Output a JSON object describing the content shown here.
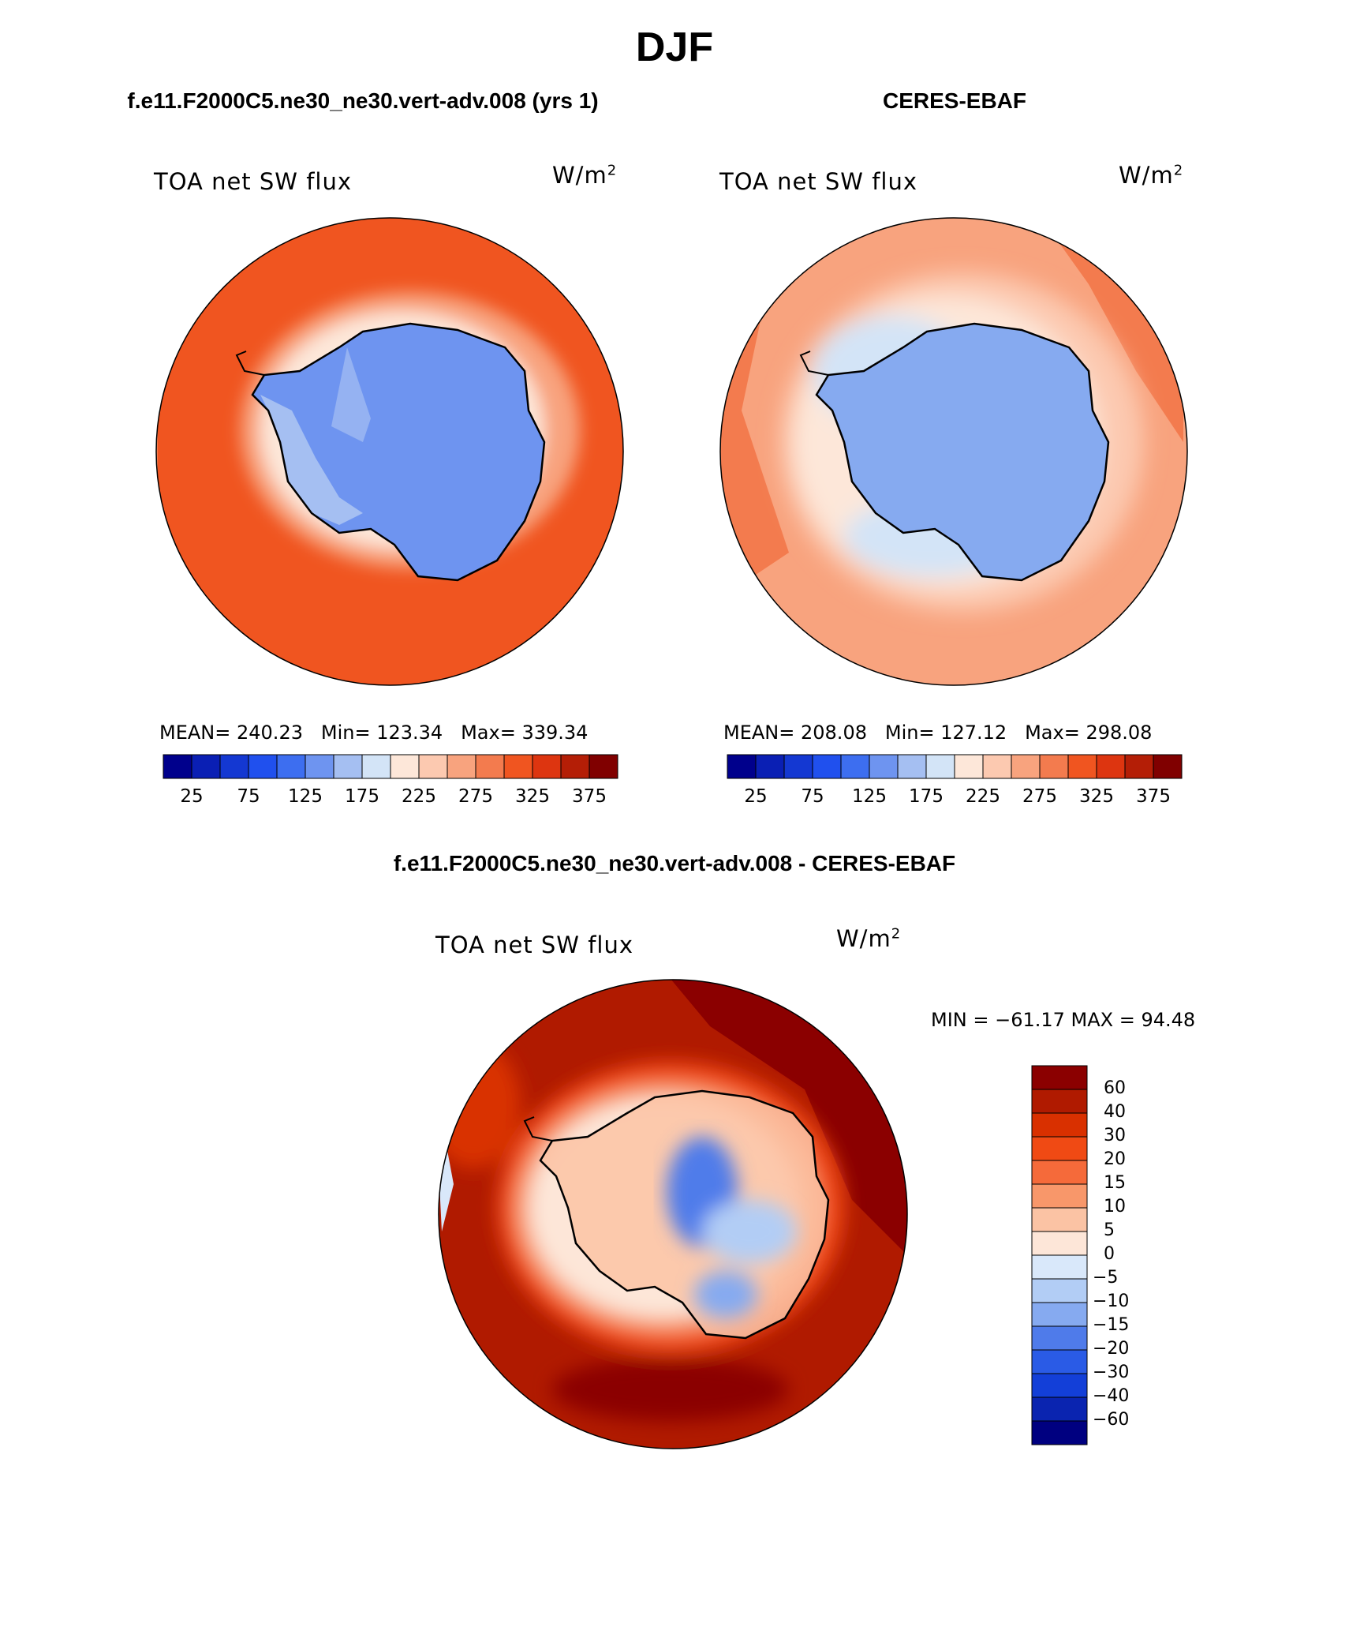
{
  "figure": {
    "title": "DJF"
  },
  "panels": [
    {
      "id": "model",
      "header": "f.e11.F2000C5.ne30_ne30.vert-adv.008 (yrs 1)",
      "variable": "TOA net SW flux",
      "units_base": "W/m",
      "units_exp": "2",
      "stats": {
        "mean_label": "MEAN=",
        "mean": "240.23",
        "min_label": "Min=",
        "min": "123.34",
        "max_label": "Max=",
        "max": "339.34"
      }
    },
    {
      "id": "obs",
      "header": "CERES-EBAF",
      "variable": "TOA net SW flux",
      "units_base": "W/m",
      "units_exp": "2",
      "stats": {
        "mean_label": "MEAN=",
        "mean": "208.08",
        "min_label": "Min=",
        "min": "127.12",
        "max_label": "Max=",
        "max": "298.08"
      }
    }
  ],
  "abs_colorbar": {
    "colors": [
      "#00008c",
      "#0a1fb4",
      "#1438d2",
      "#2050ee",
      "#3d6ef0",
      "#6e94f0",
      "#a5bff2",
      "#d3e4f7",
      "#fde7d9",
      "#fcc9b0",
      "#f8a37e",
      "#f37b4e",
      "#f05520",
      "#dd3510",
      "#b41e06",
      "#800000"
    ],
    "tick_labels": [
      "25",
      "75",
      "125",
      "175",
      "225",
      "275",
      "325",
      "375"
    ]
  },
  "diff_panel": {
    "header": "f.e11.F2000C5.ne30_ne30.vert-adv.008 - CERES-EBAF",
    "variable": "TOA net SW flux",
    "units_base": "W/m",
    "units_exp": "2",
    "minmax": "MIN = −61.17 MAX =  94.48",
    "colorbar": {
      "colors_top_to_bottom": [
        "#8b0000",
        "#b01a00",
        "#d93000",
        "#f04a14",
        "#f56a3a",
        "#f8976a",
        "#fbc3a4",
        "#fde6d8",
        "#d9e8fa",
        "#b2cdf5",
        "#86aaf0",
        "#4f7bea",
        "#2a5be6",
        "#133fd8",
        "#0a24b0",
        "#000080"
      ],
      "labels": [
        "60",
        "40",
        "30",
        "20",
        "15",
        "10",
        "5",
        "0",
        "−5",
        "−10",
        "−15",
        "−20",
        "−30",
        "−40",
        "−60"
      ]
    }
  }
}
